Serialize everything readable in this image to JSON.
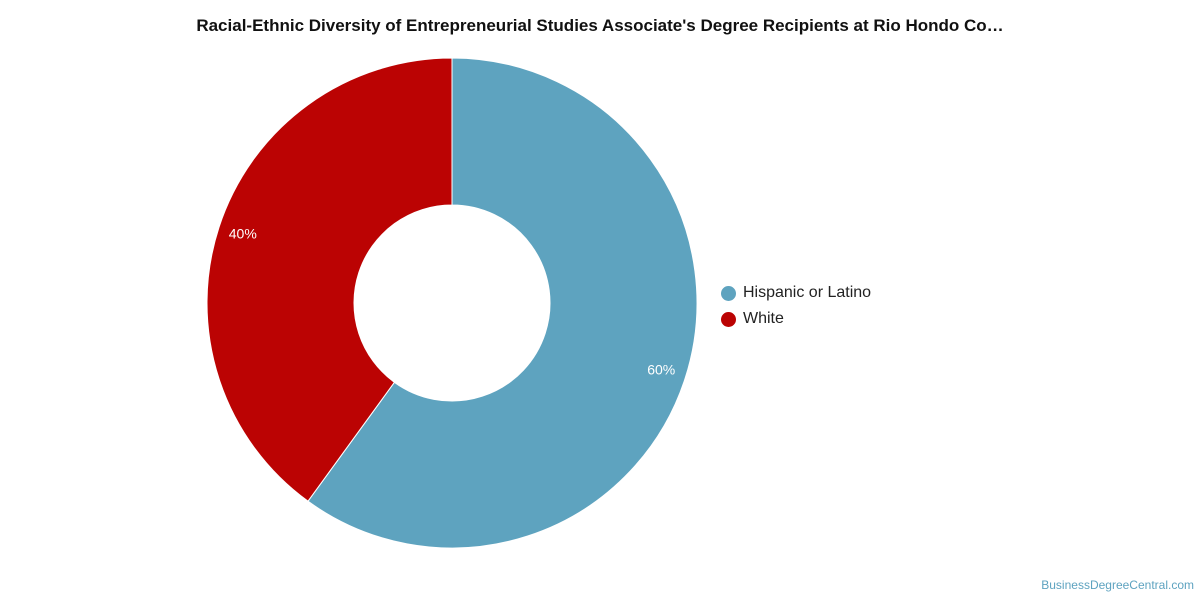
{
  "chart_data": {
    "type": "pie",
    "donut": true,
    "title": "Racial-Ethnic Diversity of Entrepreneurial Studies Associate's Degree Recipients at Rio Hondo Co…",
    "slices": [
      {
        "name": "Hispanic or Latino",
        "value": 60,
        "label": "60%",
        "color": "#5ea3bf"
      },
      {
        "name": "White",
        "value": 40,
        "label": "40%",
        "color": "#bb0303"
      }
    ],
    "legend_position": "right"
  },
  "legend": {
    "items": [
      {
        "label": "Hispanic or Latino",
        "color": "#5ea3bf"
      },
      {
        "label": "White",
        "color": "#bb0303"
      }
    ]
  },
  "footer": {
    "watermark": "BusinessDegreeCentral.com"
  }
}
